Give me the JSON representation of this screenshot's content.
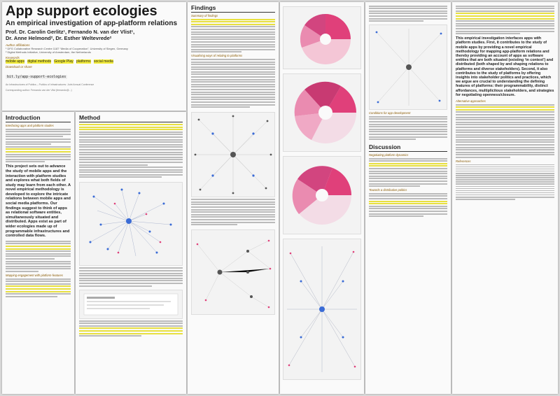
{
  "header": {
    "title": "App support ecologies",
    "subtitle": "An empirical investigation of app-platform relations",
    "authors_line1": "Prof. Dr. Carolin Gerlitz¹, Fernando N. van der Vlist¹,",
    "authors_line2": "Dr. Anne Helmond², Dr. Esther Weltevrede²",
    "affiliations_heading": "Author affiliations",
    "affiliation1": "¹ DFG Collaborative Research Centre 1187 “Media of Cooperation”, University of Siegen, Germany",
    "affiliation2": "² Digital Methods Initiative, University of Amsterdam, the Netherlands",
    "keywords_heading": "Keywords",
    "keywords": [
      "mobile apps",
      "digital methods",
      "Google Play",
      "platforms",
      "social media"
    ],
    "download_heading": "Download or share",
    "download_link": "bit.ly/app-support-ecologies",
    "ack1": "An Infrastructures of Publics – Publics of Infrastructures: Joint Annual Conference",
    "ack2": "Corresponding author: Fernando van der Vlist (fernando@...)"
  },
  "sections": {
    "introduction": "Introduction",
    "intro_sub1": "Interfacing apps and platform studies",
    "intro_sub2": "Mapping engagement with platform-features",
    "intro_highlight": "This project sets out to advance the study of mobile apps and the interaction with platform studies and explores what both fields of study may learn from each other. A novel empirical methodology is developed to explore the intricate relations between mobile apps and social media platforms. Our findings suggest to think of apps as relational software entities, simultaneously situated and distributed. Apps exist as part of wider ecologies made up of programmable infrastructures and controlled data flows.",
    "method": "Method",
    "findings": "Findings",
    "findings_sub1": "Summary of findings",
    "findings_sub2": "Visualising ways of relating to platforms",
    "findings_sub3": "Conditions for app-development",
    "discussion": "Discussion",
    "disc_sub1": "Negotiating platform dynamics",
    "disc_sub2": "Towards a distributive politics",
    "right_sub1": "Alternative approaches",
    "right_sub2": "References",
    "right_highlight": "This empirical investigation interfaces apps with platform studies. First, it contributes to the study of mobile apps by providing a novel empirical methodology for mapping app-platform relations and thereby providing an account of apps as software entities that are both situated (existing ‘in context’) and distributed (both shaped by and shaping relations to platforms and diverse stakeholders). Second, it also contributes to the study of platforms by offering insights into stakeholder politics and practices, which we argue are crucial to understanding the defining features of platforms: their programmability, distinct affordances, multiplicitous stakeholders, and strategies for negotiating openness/closure."
  },
  "colors": {
    "highlight": "#f5ee3a",
    "accent_pink": "#e0407a",
    "accent_blue": "#3a6bd6",
    "heading_accent": "#8a5a00"
  }
}
